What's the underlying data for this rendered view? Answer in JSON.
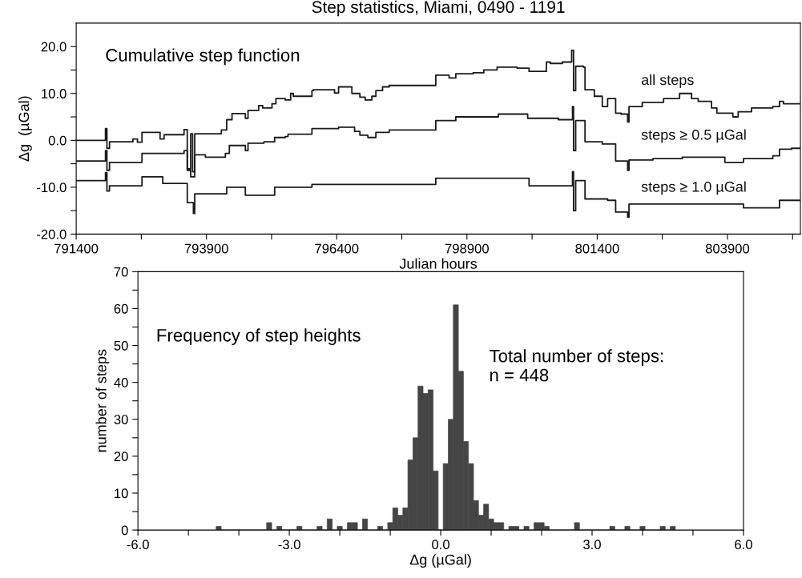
{
  "chart_data": [
    {
      "type": "step",
      "title": "Step statistics, Miami, 0490 - 1191",
      "xlabel": "Julian hours",
      "ylabel": "Δg  (µGal)",
      "annotations": [
        "Cumulative step function"
      ],
      "xlim": [
        791400,
        805300
      ],
      "xticks": [
        791400,
        {
          "value": 792650,
          "label": null
        },
        793900,
        {
          "value": 795150,
          "label": null
        },
        796400,
        {
          "value": 797650,
          "label": null
        },
        798900,
        {
          "value": 800150,
          "label": null
        },
        801400,
        {
          "value": 802650,
          "label": null
        },
        803900,
        {
          "value": 805150,
          "label": null
        }
      ],
      "ylim": [
        -20,
        25
      ],
      "yticks": [
        {
          "value": -20,
          "label": "-20.0"
        },
        {
          "value": -15,
          "label": null
        },
        {
          "value": -10,
          "label": "-10.0"
        },
        {
          "value": -5,
          "label": null
        },
        {
          "value": 0,
          "label": "0.0"
        },
        {
          "value": 5,
          "label": null
        },
        {
          "value": 10,
          "label": "10.0"
        },
        {
          "value": 15,
          "label": null
        },
        {
          "value": 20,
          "label": "20.0"
        }
      ],
      "series": [
        {
          "name": "all steps",
          "color": "#1a1a1a",
          "x": [
            791400,
            791962,
            791990,
            792039,
            792489,
            792576,
            792663,
            793010,
            793087,
            793470,
            793532,
            793598,
            793634,
            793675,
            794186,
            794289,
            794391,
            794647,
            794698,
            794902,
            794979,
            795158,
            795234,
            795413,
            795516,
            795567,
            795925,
            795950,
            796359,
            796436,
            796691,
            796845,
            796947,
            797075,
            797152,
            797280,
            797408,
            798302,
            798558,
            798686,
            799019,
            799223,
            799479,
            799862,
            800092,
            800425,
            800501,
            800731,
            800910,
            800946,
            800987,
            801140,
            801166,
            801345,
            801498,
            801600,
            801754,
            801856,
            801984,
            802010,
            802265,
            802674,
            802981,
            803211,
            803339,
            803595,
            803697,
            804004,
            804106,
            804362,
            804771,
            804899,
            804975,
            805290
          ],
          "values": [
            0.0,
            2.5,
            -1.7,
            -0.3,
            0.3,
            -0.4,
            1.7,
            0.3,
            1.2,
            2.3,
            -6.1,
            1.4,
            -6.7,
            1.4,
            2.2,
            4.4,
            5.7,
            4.7,
            6.4,
            7.4,
            6.9,
            7.8,
            8.9,
            8.6,
            10.0,
            9.4,
            10.6,
            10.8,
            10.1,
            11.4,
            10.0,
            9.2,
            8.6,
            9.4,
            10.6,
            11.4,
            11.7,
            13.9,
            13.3,
            14.2,
            14.4,
            15.0,
            15.6,
            15.4,
            14.7,
            16.7,
            16.4,
            16.7,
            19.2,
            10.6,
            15.8,
            15.6,
            10.8,
            9.4,
            7.2,
            8.9,
            5.8,
            5.6,
            3.9,
            7.2,
            8.1,
            8.9,
            10.0,
            8.9,
            8.3,
            6.9,
            5.8,
            5.0,
            6.1,
            6.9,
            7.2,
            8.3,
            7.8,
            7.8
          ]
        },
        {
          "name": "steps ≥ 0.5 µGal",
          "color": "#1a1a1a",
          "x": [
            791400,
            791962,
            791990,
            792039,
            792663,
            793470,
            793532,
            793598,
            793675,
            793880,
            794263,
            794340,
            794647,
            794698,
            795004,
            795209,
            795413,
            795465,
            795925,
            796436,
            796743,
            796845,
            796998,
            797152,
            797408,
            798302,
            798686,
            799504,
            800066,
            800654,
            800926,
            800946,
            800987,
            801166,
            801498,
            801754,
            801984,
            802010,
            802470,
            803032,
            803850,
            804208,
            804771,
            804899,
            805129,
            805290
          ],
          "values": [
            -4.4,
            -2.2,
            -6.4,
            -4.7,
            -2.8,
            -2.2,
            -6.4,
            -7.8,
            -3.1,
            -3.6,
            -2.8,
            -1.1,
            -2.2,
            -0.6,
            -0.3,
            0.6,
            0.8,
            1.3,
            2.5,
            2.8,
            1.9,
            1.1,
            0.6,
            1.7,
            2.2,
            4.2,
            5.0,
            5.6,
            4.7,
            4.4,
            7.2,
            -2.2,
            4.2,
            -0.3,
            -0.8,
            -4.4,
            -6.4,
            -4.2,
            -3.9,
            -3.6,
            -4.7,
            -3.9,
            -3.3,
            -1.9,
            -1.7,
            -1.7
          ]
        },
        {
          "name": "steps ≥ 1.0 µGal",
          "color": "#1a1a1a",
          "x": [
            791400,
            791962,
            791990,
            792039,
            792663,
            793062,
            793532,
            793650,
            793675,
            794289,
            794647,
            795209,
            795925,
            798302,
            800092,
            800926,
            800946,
            800987,
            801166,
            801600,
            801754,
            801984,
            802010,
            804208,
            804899,
            805290
          ],
          "values": [
            -8.6,
            -6.9,
            -10.8,
            -9.7,
            -7.8,
            -9.2,
            -13.3,
            -15.6,
            -11.4,
            -10.0,
            -11.7,
            -10.0,
            -9.4,
            -8.1,
            -9.7,
            -6.7,
            -15.0,
            -8.6,
            -12.5,
            -12.8,
            -15.3,
            -16.4,
            -13.6,
            -14.4,
            -12.8,
            -12.8
          ]
        }
      ]
    },
    {
      "type": "histogram",
      "xlabel": "Δg (µGal)",
      "ylabel": "number of steps",
      "annotations": [
        "Frequency of step heights",
        "Total number of steps:\nn = 448"
      ],
      "color": "#454545",
      "bins": [
        -4.45,
        -4.35,
        -4.25,
        -4.15,
        -4.05,
        -3.95,
        -3.85,
        -3.75,
        -3.65,
        -3.55,
        -3.45,
        -3.35,
        -3.25,
        -3.15,
        -3.05,
        -2.95,
        -2.85,
        -2.75,
        -2.65,
        -2.55,
        -2.45,
        -2.35,
        -2.25,
        -2.15,
        -2.05,
        -1.95,
        -1.85,
        -1.75,
        -1.65,
        -1.55,
        -1.45,
        -1.35,
        -1.25,
        -1.15,
        -1.05,
        -0.95,
        -0.85,
        -0.75,
        -0.65,
        -0.55,
        -0.45,
        -0.35,
        -0.25,
        -0.15,
        -0.05,
        0.05,
        0.15,
        0.25,
        0.35,
        0.45,
        0.55,
        0.65,
        0.75,
        0.85,
        0.95,
        1.05,
        1.15,
        1.25,
        1.35,
        1.45,
        1.55,
        1.65,
        1.75,
        1.85,
        1.95,
        2.05,
        2.15,
        2.25,
        2.35,
        2.45,
        2.55,
        2.65,
        2.75,
        2.85,
        2.95,
        3.05,
        3.15,
        3.25,
        3.35,
        3.45,
        3.55,
        3.65,
        3.75,
        3.85,
        3.95,
        4.05,
        4.15,
        4.25,
        4.35,
        4.45,
        4.55,
        4.65
      ],
      "values": [
        1,
        0,
        0,
        0,
        0,
        0,
        0,
        0,
        0,
        0,
        2,
        0,
        1,
        0,
        0,
        0,
        1,
        0,
        0,
        0,
        1,
        0,
        3,
        0,
        1,
        0,
        2,
        2,
        0,
        3,
        0,
        0,
        1,
        0,
        2,
        6,
        4,
        6,
        19,
        25,
        39,
        37,
        38,
        16,
        0,
        18,
        30,
        61,
        43,
        24,
        18,
        8,
        4,
        7,
        3,
        2,
        2,
        0,
        1,
        1,
        0,
        1,
        0,
        2,
        2,
        1,
        0,
        0,
        0,
        0,
        0,
        2,
        0,
        0,
        0,
        0,
        0,
        0,
        1,
        0,
        0,
        1,
        0,
        0,
        1,
        0,
        0,
        0,
        1,
        0,
        1
      ],
      "xlim": [
        -6,
        6
      ],
      "xticks": [
        {
          "value": -6,
          "label": "-6.0"
        },
        {
          "value": -5,
          "label": null
        },
        {
          "value": -4,
          "label": null
        },
        {
          "value": -3,
          "label": "-3.0"
        },
        {
          "value": -2,
          "label": null
        },
        {
          "value": -1,
          "label": null
        },
        {
          "value": 0,
          "label": "0.0"
        },
        {
          "value": 1,
          "label": null
        },
        {
          "value": 2,
          "label": null
        },
        {
          "value": 3,
          "label": "3.0"
        },
        {
          "value": 4,
          "label": null
        },
        {
          "value": 5,
          "label": null
        },
        {
          "value": 6,
          "label": "6.0"
        }
      ],
      "ylim": [
        0,
        70
      ],
      "yticks": [
        0,
        {
          "value": 5,
          "label": null
        },
        10,
        {
          "value": 15,
          "label": null
        },
        20,
        {
          "value": 25,
          "label": null
        },
        30,
        {
          "value": 35,
          "label": null
        },
        40,
        {
          "value": 45,
          "label": null
        },
        50,
        {
          "value": 55,
          "label": null
        },
        60,
        {
          "value": 65,
          "label": null
        },
        70
      ]
    }
  ]
}
